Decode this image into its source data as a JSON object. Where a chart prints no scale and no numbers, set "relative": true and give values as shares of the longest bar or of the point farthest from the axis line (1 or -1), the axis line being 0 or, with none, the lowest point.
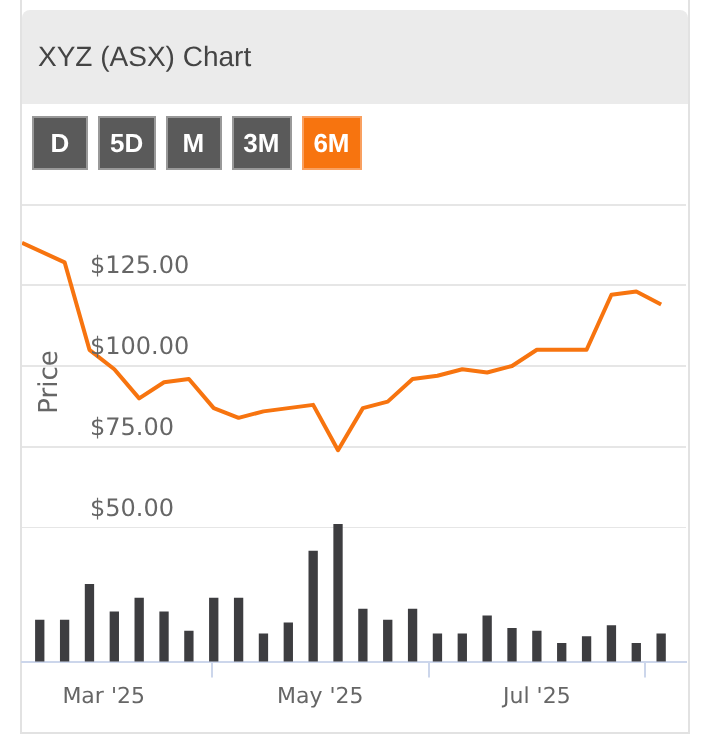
{
  "chart_data": [
    {
      "type": "line",
      "title": "XYZ (ASX) Chart",
      "annotations": [
        "D",
        "5D",
        "M",
        "3M",
        "6M"
      ],
      "ylabel": "Price",
      "x": [
        "2025-02-06",
        "2025-02-18",
        "2025-02-25",
        "2025-03-04",
        "2025-03-11",
        "2025-03-18",
        "2025-03-25",
        "2025-04-01",
        "2025-04-08",
        "2025-04-15",
        "2025-04-22",
        "2025-04-29",
        "2025-05-06",
        "2025-05-13",
        "2025-05-20",
        "2025-05-27",
        "2025-06-03",
        "2025-06-10",
        "2025-06-17",
        "2025-06-24",
        "2025-07-01",
        "2025-07-08",
        "2025-07-15",
        "2025-07-22",
        "2025-07-29",
        "2025-08-05"
      ],
      "series": [
        {
          "color": "#f7740f",
          "values": [
            138,
            132,
            105,
            99,
            90,
            95,
            96,
            87,
            84,
            86,
            87,
            88,
            74,
            87,
            89,
            96,
            97,
            99,
            98,
            100,
            105,
            105,
            105,
            122,
            123,
            119
          ]
        }
      ],
      "xlim": [
        "2025-02-06",
        "2025-08-12"
      ],
      "ylim": [
        50,
        150
      ],
      "yticks": [
        {
          "value": 50,
          "label": "$50.00"
        },
        {
          "value": 75,
          "label": "$75.00"
        },
        {
          "value": 100,
          "label": "$100.00"
        },
        {
          "value": 125,
          "label": "$125.00"
        }
      ],
      "grid": "y",
      "tick_labels": "y",
      "marker": "none"
    },
    {
      "type": "bar",
      "relative": true,
      "color": "#3d3d40",
      "x": [
        "2025-02-11",
        "2025-02-18",
        "2025-02-25",
        "2025-03-04",
        "2025-03-11",
        "2025-03-18",
        "2025-03-25",
        "2025-04-01",
        "2025-04-08",
        "2025-04-15",
        "2025-04-22",
        "2025-04-29",
        "2025-05-06",
        "2025-05-13",
        "2025-05-20",
        "2025-05-27",
        "2025-06-03",
        "2025-06-10",
        "2025-06-17",
        "2025-06-24",
        "2025-07-01",
        "2025-07-08",
        "2025-07-15",
        "2025-07-22",
        "2025-07-29",
        "2025-08-05"
      ],
      "values": [
        0.3,
        0.3,
        0.56,
        0.36,
        0.46,
        0.36,
        0.22,
        0.46,
        0.46,
        0.2,
        0.28,
        0.8,
        1,
        0.38,
        0.3,
        0.38,
        0.2,
        0.2,
        0.33,
        0.24,
        0.22,
        0.13,
        0.18,
        0.26,
        0.13,
        0.2
      ],
      "xlim": [
        "2025-02-06",
        "2025-08-12"
      ],
      "xticks": [
        {
          "value": "2025-03-01",
          "label": "Mar '25"
        },
        {
          "value": "2025-05-01",
          "label": "May '25"
        },
        {
          "value": "2025-07-01",
          "label": "Jul '25"
        }
      ],
      "tick_labels": "x"
    }
  ]
}
